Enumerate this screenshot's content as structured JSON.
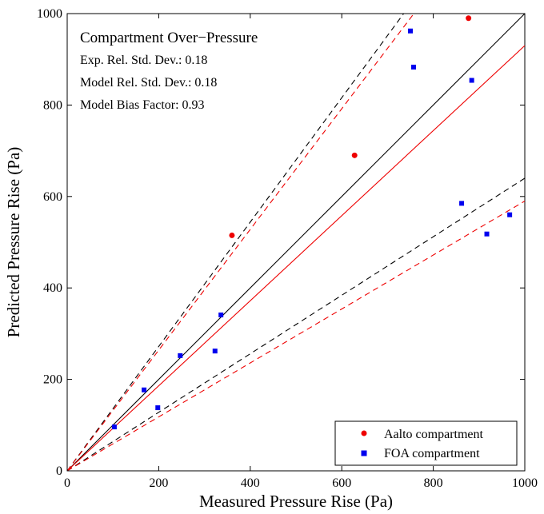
{
  "chart_data": {
    "type": "scatter",
    "xlabel": "Measured Pressure Rise (Pa)",
    "ylabel": "Predicted Pressure Rise (Pa)",
    "xlim": [
      0,
      1000
    ],
    "ylim": [
      0,
      1000
    ],
    "xticks": [
      "0",
      "200",
      "400",
      "600",
      "800",
      "1000"
    ],
    "yticks": [
      "0",
      "200",
      "400",
      "600",
      "800",
      "1000"
    ],
    "grid": false,
    "legend_position": "bottom-right",
    "annotations": {
      "title": "Compartment Over−Pressure",
      "exp_std_dev": "Exp. Rel. Std. Dev.: 0.18",
      "model_std_dev": "Model Rel. Std. Dev.: 0.18",
      "model_bias": "Model Bias Factor: 0.93"
    },
    "series": [
      {
        "name": "Aalto compartment",
        "marker": "circle",
        "color": "#ee0000",
        "points": [
          [
            360,
            515
          ],
          [
            628,
            690
          ],
          [
            877,
            990
          ]
        ]
      },
      {
        "name": "FOA compartment",
        "marker": "square",
        "color": "#0000ee",
        "points": [
          [
            103,
            96
          ],
          [
            168,
            177
          ],
          [
            198,
            138
          ],
          [
            247,
            252
          ],
          [
            323,
            262
          ],
          [
            336,
            341
          ],
          [
            750,
            962
          ],
          [
            757,
            883
          ],
          [
            862,
            585
          ],
          [
            884,
            854
          ],
          [
            917,
            518
          ],
          [
            967,
            560
          ]
        ]
      }
    ],
    "reference_lines": {
      "black": {
        "color": "#000000",
        "slopes": [
          1.0,
          1.36,
          0.64
        ],
        "styles": [
          "solid",
          "dashed",
          "dashed"
        ]
      },
      "red": {
        "color": "#ee0000",
        "slopes": [
          0.93,
          1.32,
          0.59
        ],
        "styles": [
          "solid",
          "dashed",
          "dashed"
        ]
      }
    }
  }
}
